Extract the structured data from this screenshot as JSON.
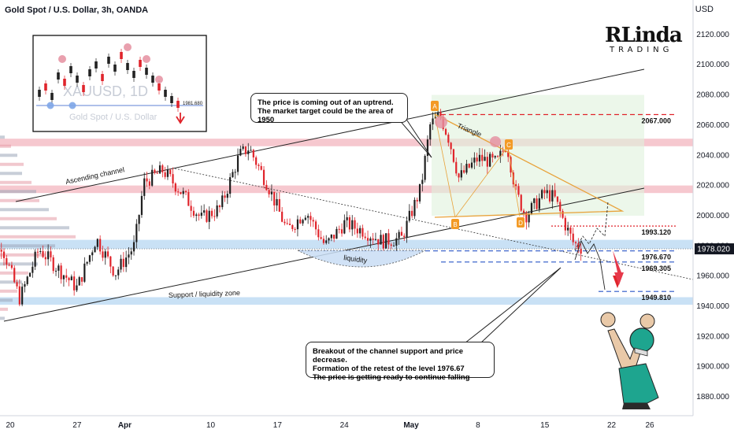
{
  "header": {
    "title": "Gold Spot / U.S. Dollar, 3h, OANDA",
    "currency": "USD"
  },
  "logo": {
    "line1": "RLinda",
    "line2": "TRADING"
  },
  "callouts": {
    "top": [
      "The price is coming out of an uptrend.",
      "The market target could be the area of 1950"
    ],
    "bottom": [
      "Breakout of the channel support and price decrease.",
      "Formation of the retest of the level 1976.67",
      "The price is getting ready to continue falling"
    ]
  },
  "inset": {
    "watermark_symbol": "XAUUSD, 1D",
    "watermark_name": "Gold Spot / U.S. Dollar",
    "level_label": "1981.680"
  },
  "chart_data": {
    "type": "line",
    "title": "Gold Spot / U.S. Dollar, 3h, OANDA",
    "y_axis": {
      "ylim": [
        1862,
        2133
      ],
      "ticks": [
        2120,
        2100,
        2080,
        2060,
        2040,
        2020,
        2000,
        1980,
        1960,
        1940,
        1920,
        1900,
        1880
      ],
      "tick_labels": [
        "2120.000",
        "2100.000",
        "2080.000",
        "2060.000",
        "2040.000",
        "2020.000",
        "2000.000",
        "1980.000",
        "1960.000",
        "1940.000",
        "1920.000",
        "1900.000",
        "1880.000"
      ],
      "current_price": 1978.02,
      "current_price_label": "1978.020"
    },
    "x_axis": {
      "tick_labels": [
        "20",
        "27",
        "Apr",
        "10",
        "17",
        "24",
        "May",
        "8",
        "15",
        "22",
        "26"
      ],
      "tick_dates": [
        "2023-03-20",
        "2023-03-27",
        "2023-04-01",
        "2023-04-10",
        "2023-04-17",
        "2023-04-24",
        "2023-05-01",
        "2023-05-08",
        "2023-05-15",
        "2023-05-22",
        "2023-05-26"
      ]
    },
    "series": [
      {
        "x": [
          "2023-03-17",
          "2023-03-19",
          "2023-03-21",
          "2023-03-23",
          "2023-03-25",
          "2023-03-27",
          "2023-03-29",
          "2023-03-31",
          "2023-04-02",
          "2023-04-03",
          "2023-04-05",
          "2023-04-07",
          "2023-04-09",
          "2023-04-11",
          "2023-04-13",
          "2023-04-14",
          "2023-04-16",
          "2023-04-18",
          "2023-04-20",
          "2023-04-22",
          "2023-04-24",
          "2023-04-26",
          "2023-04-28",
          "2023-04-30",
          "2023-05-02",
          "2023-05-03",
          "2023-05-04",
          "2023-05-05",
          "2023-05-06",
          "2023-05-08",
          "2023-05-10",
          "2023-05-11",
          "2023-05-12",
          "2023-05-13",
          "2023-05-15",
          "2023-05-16",
          "2023-05-17",
          "2023-05-18",
          "2023-05-19"
        ],
        "values": [
          1930,
          1982,
          1945,
          1978,
          1965,
          1952,
          1985,
          1962,
          1980,
          2022,
          2030,
          2015,
          1998,
          2005,
          2040,
          2045,
          2020,
          1990,
          2003,
          1980,
          1995,
          1990,
          1983,
          1985,
          2018,
          2060,
          2067,
          2050,
          2025,
          2038,
          2035,
          2048,
          2015,
          2000,
          2015,
          2012,
          1996,
          1982,
          1978
        ]
      }
    ],
    "horizontal_levels": [
      {
        "value": 2067.0,
        "label": "2067.000",
        "style": "red-dashed"
      },
      {
        "value": 1993.12,
        "label": "1993.120",
        "style": "red-dotted"
      },
      {
        "value": 1976.67,
        "label": "1976.670",
        "style": "blue-dashed"
      },
      {
        "value": 1969.305,
        "label": "1969.305",
        "style": "blue-dashed"
      },
      {
        "value": 1949.81,
        "label": "1949.810",
        "style": "blue-dashed"
      }
    ],
    "zones": [
      {
        "from": 2046,
        "to": 2051,
        "color": "#f3b6bf"
      },
      {
        "from": 2015,
        "to": 2020,
        "color": "#f3b6bf"
      },
      {
        "from": 1978,
        "to": 1984,
        "color": "#b7d7f2"
      },
      {
        "from": 1941,
        "to": 1946,
        "color": "#b7d7f2"
      }
    ],
    "annotations": [
      "Ascending channel",
      "Triangle",
      "liquidity",
      "Support / liquidity zone",
      "A",
      "B",
      "C",
      "D"
    ]
  }
}
